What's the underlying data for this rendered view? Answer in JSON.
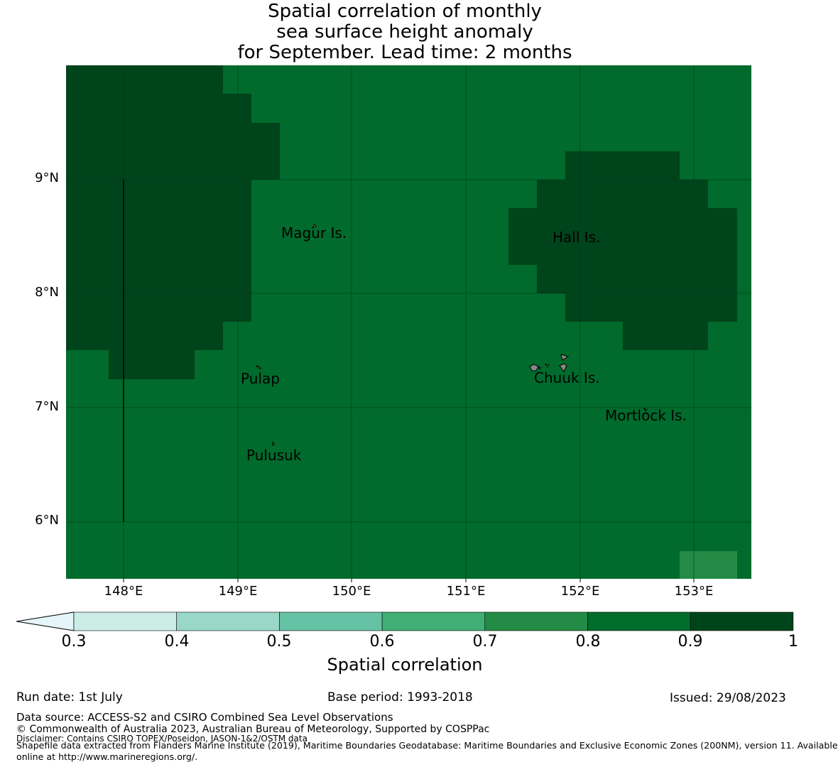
{
  "title": {
    "line1": "Spatial correlation of monthly",
    "line2": "sea surface height anomaly",
    "line3": "for September. Lead time: 2 months"
  },
  "map": {
    "lat_ticks": [
      "9°N",
      "8°N",
      "7°N",
      "6°N"
    ],
    "lon_ticks": [
      "148°E",
      "149°E",
      "150°E",
      "151°E",
      "152°E",
      "153°E"
    ],
    "places": [
      {
        "name": "Magur Is.",
        "lon": 149.6,
        "lat": 8.55
      },
      {
        "name": "Hall Is.",
        "lon": 151.85,
        "lat": 8.5
      },
      {
        "name": "Pulap",
        "lon": 149.2,
        "lat": 7.35
      },
      {
        "name": "Chuuk Is.",
        "lon": 151.85,
        "lat": 7.35
      },
      {
        "name": "Mortlock Is.",
        "lon": 152.55,
        "lat": 6.95
      },
      {
        "name": "Pulusuk",
        "lon": 149.3,
        "lat": 6.7
      }
    ],
    "colors": {
      "class_0_8_0_9": "#006b2c",
      "class_0_9_1": "#00441b",
      "class_0_7_0_8": "#238b45"
    }
  },
  "colorbar": {
    "ticks": [
      "0.3",
      "0.4",
      "0.5",
      "0.6",
      "0.7",
      "0.8",
      "0.9",
      "1"
    ],
    "colors": [
      "#ccece6",
      "#99d8c9",
      "#66c2a4",
      "#41ae76",
      "#238b45",
      "#006d2c",
      "#00441b"
    ],
    "extend_color": "#e5f5f9",
    "label": "Spatial correlation"
  },
  "footer": {
    "run_date": "Run date: 1st July",
    "base_period": "Base period: 1993-2018",
    "issued": "Issued: 29/08/2023",
    "data_source": "Data source: ACCESS-S2 and CSIRO Combined Sea Level Observations",
    "copyright": "© Commonwealth of Australia 2023, Australian Bureau of Meteorology, Supported by COSPPac",
    "disclaimer": "Disclaimer: Contains CSIRO TOPEX/Poseidon, JASON-1&2/OSTM data",
    "shapefile_line1": "Shapefile data extracted from Flanders Marine Institute (2019), Maritime Boundaries Geodatabase: Maritime Boundaries and Exclusive Economic Zones (200NM), version 11. Available",
    "shapefile_line2": "online at http://www.marineregions.org/."
  }
}
